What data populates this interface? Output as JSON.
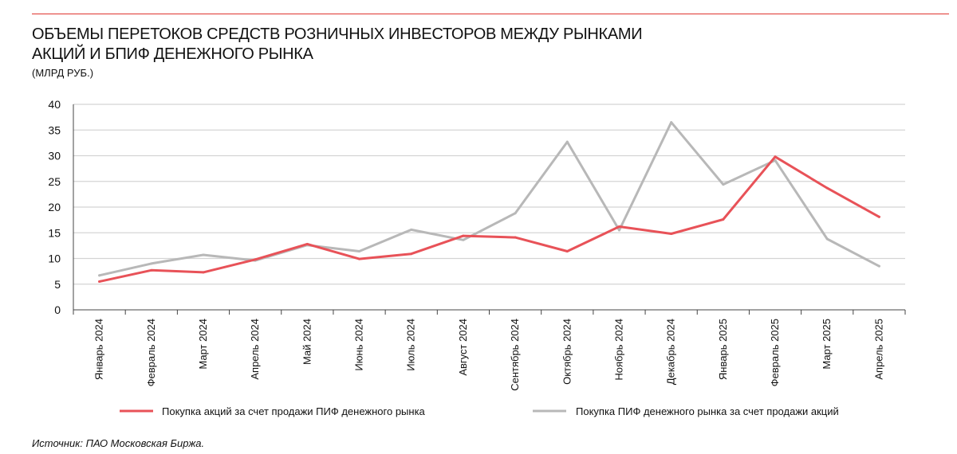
{
  "title_lines": [
    "ОБЪЕМЫ ПЕРЕТОКОВ СРЕДСТВ РОЗНИЧНЫХ ИНВЕСТОРОВ МЕЖДУ РЫНКАМИ",
    "АКЦИЙ И БПИФ ДЕНЕЖНОГО РЫНКА"
  ],
  "units": "(МЛРД РУБ.)",
  "source": "Источник: ПАО Московская Биржа.",
  "colors": {
    "accent": "#e0342f",
    "series1": "#e85258",
    "series2": "#b8b8b8"
  },
  "chart_data": {
    "type": "line",
    "categories": [
      "Январь 2024",
      "Февраль 2024",
      "Март 2024",
      "Апрель 2024",
      "Май 2024",
      "Июнь 2024",
      "Июль 2024",
      "Август 2024",
      "Сентябрь 2024",
      "Октябрь 2024",
      "Ноябрь 2024",
      "Декабрь 2024",
      "Январь 2025",
      "Февраль 2025",
      "Март 2025",
      "Апрель 2025"
    ],
    "series": [
      {
        "name": "Покупка акций за счет продажи ПИФ денежного рынка",
        "color": "#e85258",
        "values": [
          5.5,
          7.7,
          7.3,
          9.8,
          12.8,
          9.9,
          10.9,
          14.4,
          14.1,
          11.4,
          16.2,
          14.8,
          17.6,
          29.8,
          23.7,
          18.1
        ]
      },
      {
        "name": "Покупка ПИФ денежного рынка  за счет продажи акций",
        "color": "#b8b8b8",
        "values": [
          6.7,
          9.0,
          10.7,
          9.6,
          12.6,
          11.4,
          15.6,
          13.6,
          18.8,
          32.7,
          15.5,
          36.5,
          24.4,
          29.1,
          13.8,
          8.5
        ]
      }
    ],
    "yticks": [
      0,
      5,
      10,
      15,
      20,
      25,
      30,
      35,
      40
    ],
    "ylim": [
      0,
      40
    ],
    "grid": true,
    "legend_position": "bottom"
  }
}
